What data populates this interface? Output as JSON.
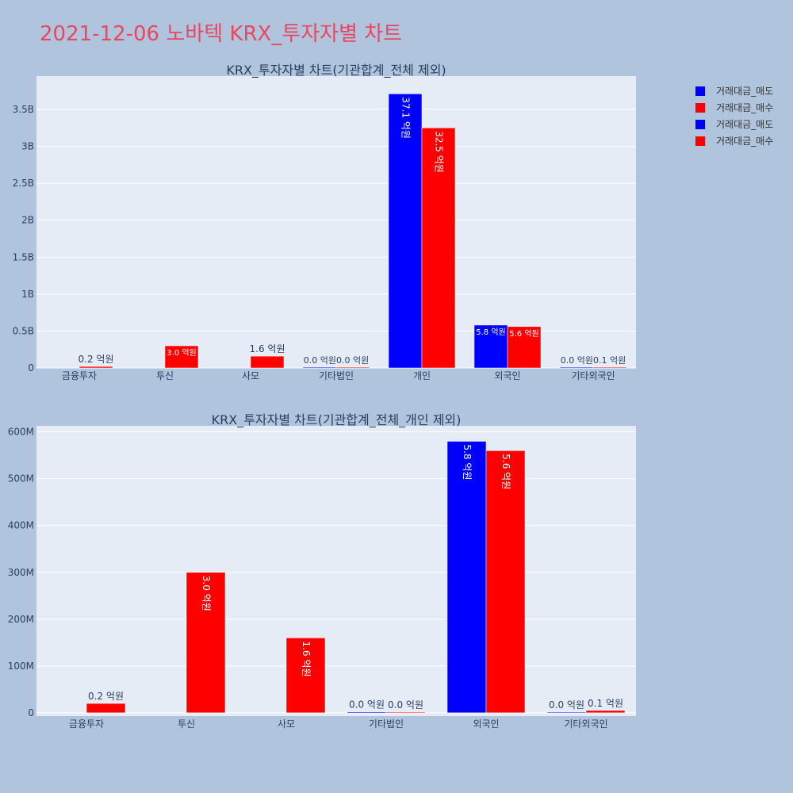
{
  "title": "2021-12-06 노바텍 KRX_투자자별 차트",
  "colors": {
    "sell": "#0000ff",
    "buy": "#ff0000",
    "plot_bg": "#e5ecf6",
    "page_bg": "#b0c4de",
    "title": "#e8485f"
  },
  "legend": [
    {
      "label": "거래대금_매도",
      "color": "#0000ff"
    },
    {
      "label": "거래대금_매수",
      "color": "#ff0000"
    },
    {
      "label": "거래대금_매도",
      "color": "#0000ff"
    },
    {
      "label": "거래대금_매수",
      "color": "#ff0000"
    }
  ],
  "chart_data": [
    {
      "type": "bar",
      "title": "KRX_투자자별 차트(기관합계_전체 제외)",
      "categories": [
        "금융투자",
        "투신",
        "사모",
        "기타법인",
        "개인",
        "외국인",
        "기타외국인"
      ],
      "ylim": [
        0,
        3950000000
      ],
      "yticks": [
        0,
        500000000,
        1000000000,
        1500000000,
        2000000000,
        2500000000,
        3000000000,
        3500000000
      ],
      "ytick_labels": [
        "0",
        "0.5B",
        "1B",
        "1.5B",
        "2B",
        "2.5B",
        "3B",
        "3.5B"
      ],
      "grid": true,
      "series": [
        {
          "name": "거래대금_매도",
          "values": [
            0,
            0,
            0,
            2000000,
            3710000000,
            580000000,
            1000000
          ],
          "labels": [
            "",
            "",
            "",
            "0.0 억원",
            "37.1 억원",
            "5.8 억원",
            ""
          ]
        },
        {
          "name": "거래대금_매수",
          "values": [
            20000000,
            300000000,
            160000000,
            1000000,
            3250000000,
            560000000,
            5000000
          ],
          "labels": [
            "0.2 억원",
            "3.0 억원",
            "1.6 억원",
            "0.0 억원",
            "32.5 억원",
            "5.6 억원",
            "0.1 억원"
          ]
        }
      ],
      "pair_labels": [
        null,
        null,
        null,
        "0.0 억원0.0 억원",
        null,
        null,
        "0.0 억원0.1 억원"
      ]
    },
    {
      "type": "bar",
      "title": "KRX_투자자별 차트(기관합계_전체_개인 제외)",
      "categories": [
        "금융투자",
        "투신",
        "사모",
        "기타법인",
        "외국인",
        "기타외국인"
      ],
      "ylim": [
        -7000000,
        613000000
      ],
      "yticks": [
        0,
        100000000,
        200000000,
        300000000,
        400000000,
        500000000,
        600000000
      ],
      "ytick_labels": [
        "0",
        "100M",
        "200M",
        "300M",
        "400M",
        "500M",
        "600M"
      ],
      "grid": true,
      "series": [
        {
          "name": "거래대금_매도",
          "values": [
            0,
            0,
            0,
            2000000,
            580000000,
            1000000
          ],
          "labels": [
            "",
            "",
            "",
            "0.0 억원",
            "5.8 억원",
            "0.0 억원"
          ]
        },
        {
          "name": "거래대금_매수",
          "values": [
            20000000,
            300000000,
            160000000,
            1000000,
            560000000,
            5000000
          ],
          "labels": [
            "0.2 억원",
            "3.0 억원",
            "1.6 억원",
            "0.0 억원",
            "5.6 억원",
            "0.1 억원"
          ]
        }
      ]
    }
  ]
}
